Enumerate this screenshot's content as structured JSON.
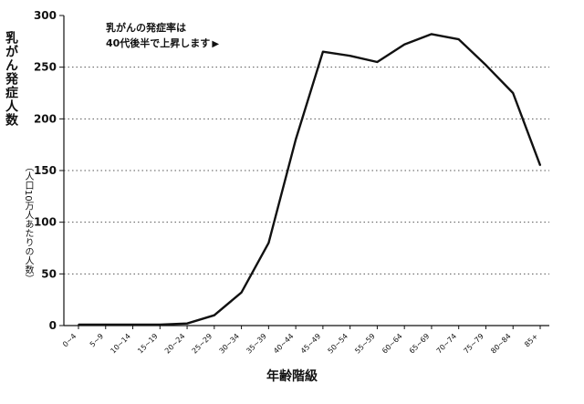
{
  "chart_data": {
    "type": "line",
    "categories": [
      "0~4",
      "5~9",
      "10~14",
      "15~19",
      "20~24",
      "25~29",
      "30~34",
      "35~39",
      "40~44",
      "45~49",
      "50~54",
      "55~59",
      "60~64",
      "65~69",
      "70~74",
      "75~79",
      "80~84",
      "85+"
    ],
    "series": [
      {
        "values": [
          1,
          1,
          1,
          1,
          2,
          10,
          32,
          80,
          180,
          265,
          261,
          255,
          272,
          282,
          277,
          252,
          225,
          155
        ]
      }
    ],
    "ylim": [
      0,
      300
    ],
    "yticks": [
      "0",
      "50",
      "100",
      "150",
      "200",
      "250",
      "300"
    ],
    "ylabel": "乳がん発症人数",
    "ylabel_sub": "（人口10万人あたりの人数）",
    "xlabel": "年齢階級",
    "annotation": [
      "乳がんの発症率は",
      "40代後半で上昇します"
    ],
    "annotation_arrow": "▶",
    "grid": true,
    "line_color": "#111111",
    "grid_color": "#555555"
  }
}
